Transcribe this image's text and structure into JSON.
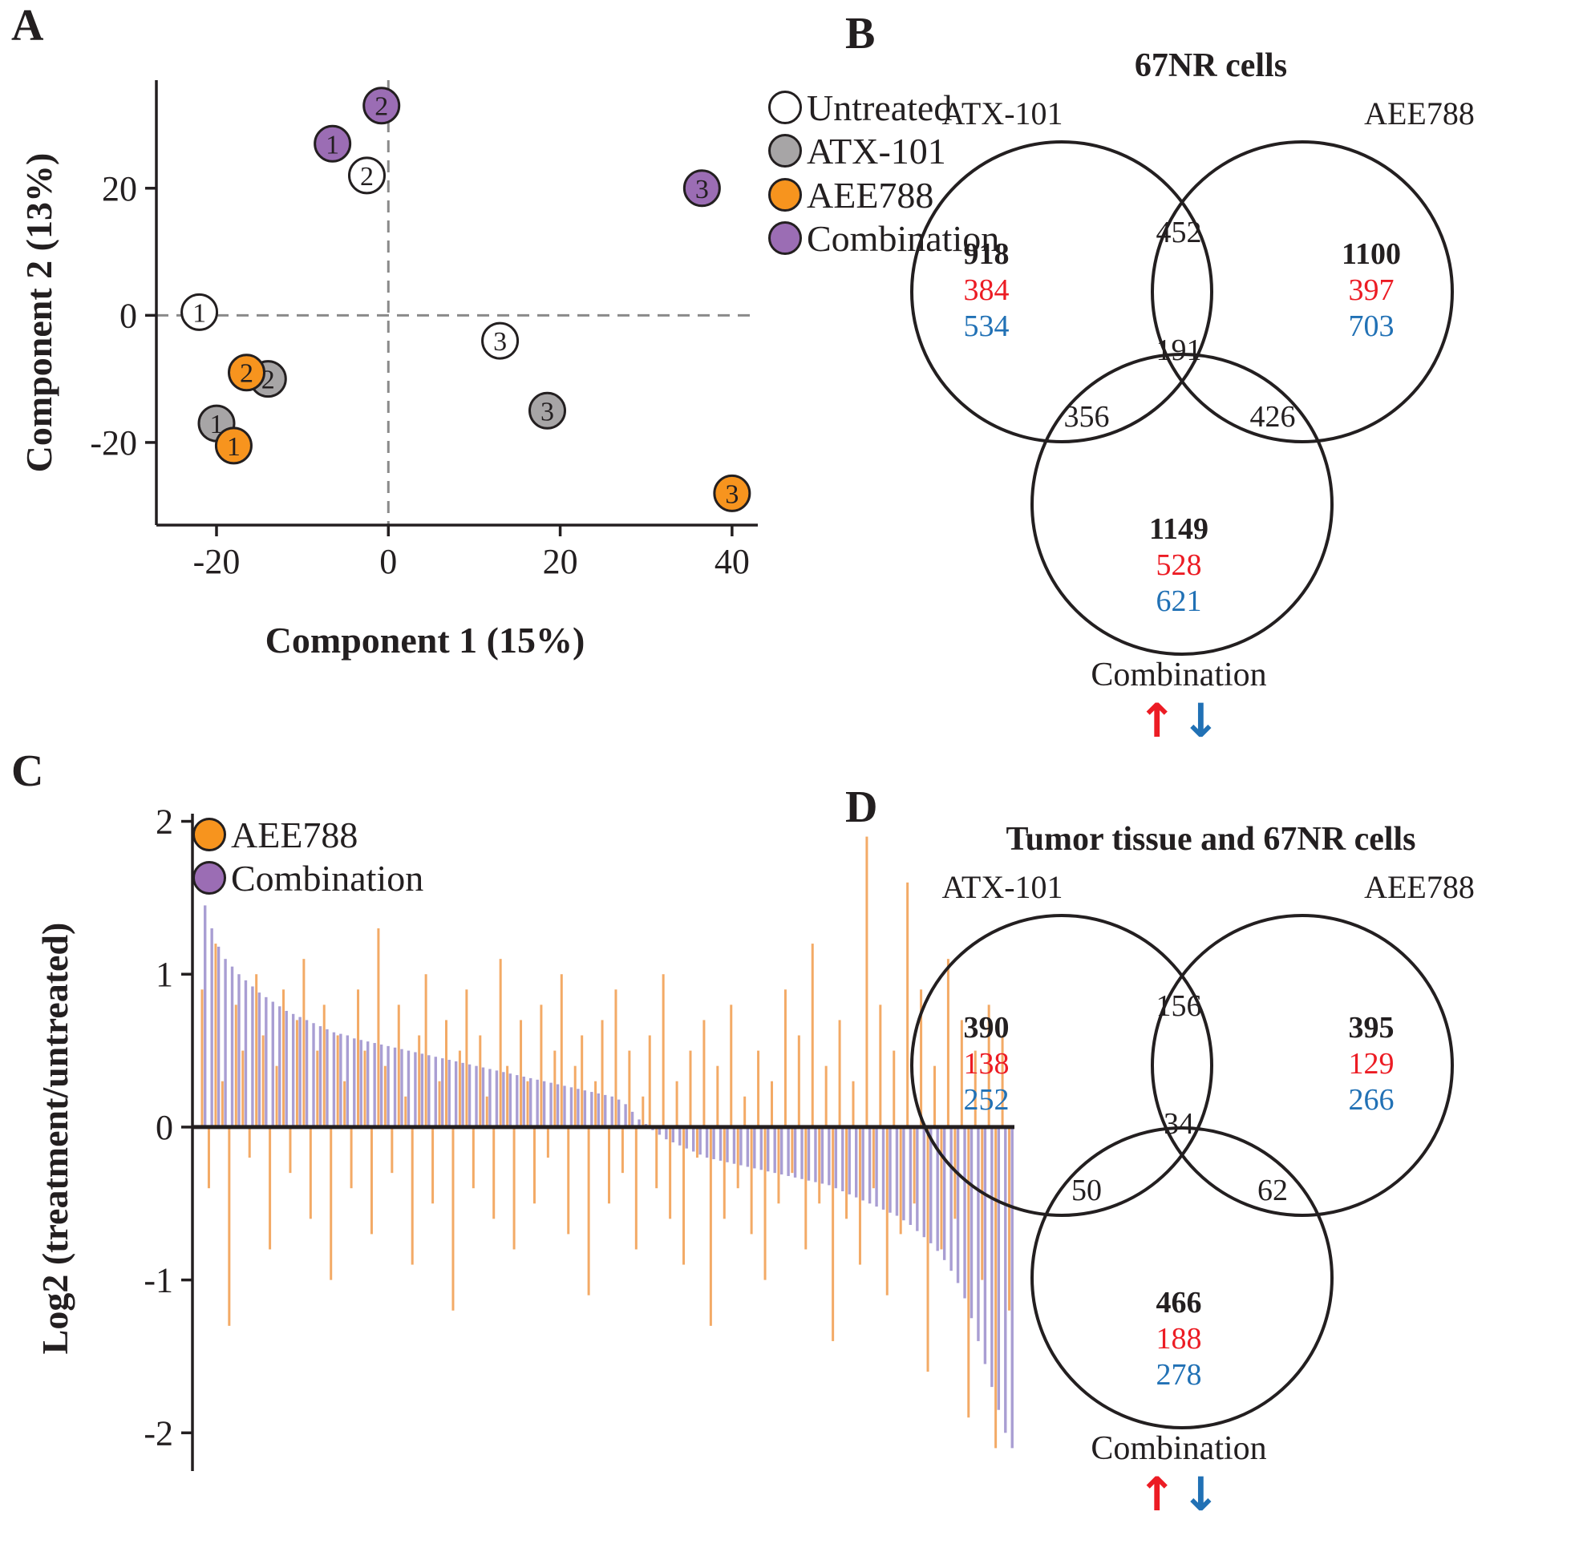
{
  "panel_labels": {
    "a": "A",
    "b": "B",
    "c": "C",
    "d": "D"
  },
  "colors": {
    "outline": "#231f20",
    "untreated": "#ffffff",
    "atx101_gray": "#a7a5a6",
    "aee788_orange": "#f7941e",
    "combination_purple": "#9b6db4",
    "up_red": "#ec1c24",
    "down_blue": "#2171b5",
    "dashed_gray": "#8a8a8a"
  },
  "chart_data": [
    {
      "id": "pca_scatter",
      "type": "scatter",
      "title": "",
      "xlabel": "Component 1 (15%)",
      "ylabel": "Component 2 (13%)",
      "xlim": [
        -27,
        43
      ],
      "ylim": [
        -33,
        37
      ],
      "xticks": [
        -20,
        0,
        20,
        40
      ],
      "yticks": [
        20,
        0,
        -20
      ],
      "grid": false,
      "zero_lines": true,
      "legend_position": "top-right-outside",
      "legend": [
        {
          "label": "Untreated",
          "color": "#ffffff"
        },
        {
          "label": "ATX-101",
          "color": "#a7a5a6"
        },
        {
          "label": "AEE788",
          "color": "#f7941e"
        },
        {
          "label": "Combination",
          "color": "#9b6db4"
        }
      ],
      "series": [
        {
          "name": "Untreated",
          "color": "#ffffff",
          "points": [
            {
              "x": -22,
              "y": 0.5,
              "label": "1"
            },
            {
              "x": -2.5,
              "y": 22,
              "label": "2"
            },
            {
              "x": 13,
              "y": -4,
              "label": "3"
            }
          ]
        },
        {
          "name": "ATX-101",
          "color": "#a7a5a6",
          "points": [
            {
              "x": -20,
              "y": -17,
              "label": "1"
            },
            {
              "x": -14,
              "y": -10,
              "label": "2"
            },
            {
              "x": 18.5,
              "y": -15,
              "label": "3"
            }
          ]
        },
        {
          "name": "AEE788",
          "color": "#f7941e",
          "points": [
            {
              "x": -18,
              "y": -20.5,
              "label": "1"
            },
            {
              "x": -16.5,
              "y": -9,
              "label": "2"
            },
            {
              "x": 40,
              "y": -28,
              "label": "3"
            }
          ]
        },
        {
          "name": "Combination",
          "color": "#9b6db4",
          "points": [
            {
              "x": -6.5,
              "y": 27,
              "label": "1"
            },
            {
              "x": -0.8,
              "y": 33,
              "label": "2"
            },
            {
              "x": 36.5,
              "y": 20,
              "label": "3"
            }
          ]
        }
      ]
    },
    {
      "id": "venn_67nr",
      "type": "venn",
      "title": "67NR cells",
      "sets": {
        "left": "ATX-101",
        "right": "AEE788",
        "bottom": "Combination"
      },
      "regions": {
        "left_only": {
          "total": "918",
          "up": "384",
          "down": "534"
        },
        "right_only": {
          "total": "1100",
          "up": "397",
          "down": "703"
        },
        "left_right": "452",
        "center": "191",
        "left_bottom": "356",
        "right_bottom": "426",
        "bottom_only": {
          "total": "1149",
          "up": "528",
          "down": "621"
        }
      },
      "arrows": {
        "up": "↑",
        "down": "↓"
      }
    },
    {
      "id": "log2_waterfall",
      "type": "bar",
      "title": "",
      "xlabel": "",
      "ylabel": "Log2 (treatment/untreated)",
      "ylim": [
        -2.25,
        2.05
      ],
      "yticks": [
        2,
        1,
        0,
        -1,
        -2
      ],
      "legend_position": "top-left-inside",
      "legend": [
        {
          "label": "AEE788",
          "color": "#f7941e"
        },
        {
          "label": "Combination",
          "color": "#9b6db4"
        }
      ],
      "series": [
        {
          "name": "AEE788",
          "color": "#f2a155",
          "values": [
            0.9,
            -0.4,
            1.2,
            0.3,
            -1.3,
            0.8,
            0.5,
            -0.2,
            1.0,
            0.6,
            -0.8,
            0.4,
            0.9,
            -0.3,
            0.7,
            1.1,
            -0.6,
            0.5,
            0.8,
            -1.0,
            0.6,
            0.3,
            -0.4,
            0.9,
            0.5,
            -0.7,
            1.3,
            0.4,
            -0.3,
            0.8,
            0.2,
            -0.9,
            0.6,
            1.0,
            -0.5,
            0.3,
            0.7,
            -1.2,
            0.5,
            0.9,
            -0.4,
            0.6,
            0.2,
            -0.6,
            1.1,
            0.4,
            -0.8,
            0.7,
            0.3,
            -0.5,
            0.8,
            -0.2,
            0.5,
            1.0,
            -0.7,
            0.4,
            0.6,
            -1.1,
            0.3,
            0.7,
            -0.5,
            0.9,
            -0.3,
            0.5,
            -0.8,
            0.2,
            0.6,
            -0.4,
            1.0,
            -0.6,
            0.3,
            -0.9,
            0.5,
            -0.2,
            0.7,
            -1.3,
            0.4,
            -0.6,
            0.8,
            -0.4,
            0.2,
            -0.7,
            0.5,
            -1.0,
            0.3,
            -0.5,
            0.9,
            -0.3,
            0.6,
            -0.8,
            1.2,
            -0.5,
            0.4,
            -1.4,
            0.7,
            -0.6,
            0.3,
            -0.9,
            1.9,
            -0.4,
            0.8,
            -1.1,
            0.5,
            -0.7,
            1.6,
            -0.5,
            0.9,
            -1.6,
            0.4,
            -0.8,
            1.1,
            -0.6,
            0.7,
            -1.9,
            0.5,
            -1.0,
            0.8,
            -2.1,
            0.6,
            -1.2
          ]
        },
        {
          "name": "Combination",
          "color": "#a094ce",
          "values": [
            1.45,
            1.3,
            1.18,
            1.1,
            1.05,
            1.0,
            0.96,
            0.92,
            0.88,
            0.85,
            0.82,
            0.79,
            0.76,
            0.74,
            0.72,
            0.7,
            0.68,
            0.66,
            0.64,
            0.62,
            0.61,
            0.6,
            0.58,
            0.57,
            0.56,
            0.55,
            0.54,
            0.53,
            0.52,
            0.51,
            0.5,
            0.49,
            0.48,
            0.47,
            0.46,
            0.45,
            0.44,
            0.43,
            0.42,
            0.41,
            0.4,
            0.39,
            0.38,
            0.37,
            0.36,
            0.35,
            0.34,
            0.33,
            0.32,
            0.31,
            0.3,
            0.29,
            0.28,
            0.27,
            0.26,
            0.25,
            0.24,
            0.23,
            0.22,
            0.21,
            0.2,
            0.18,
            0.15,
            0.1,
            0.05,
            0.02,
            -0.02,
            -0.05,
            -0.08,
            -0.1,
            -0.12,
            -0.14,
            -0.16,
            -0.18,
            -0.2,
            -0.21,
            -0.22,
            -0.23,
            -0.24,
            -0.25,
            -0.26,
            -0.27,
            -0.28,
            -0.29,
            -0.3,
            -0.31,
            -0.32,
            -0.33,
            -0.34,
            -0.35,
            -0.36,
            -0.37,
            -0.38,
            -0.4,
            -0.42,
            -0.44,
            -0.46,
            -0.48,
            -0.5,
            -0.52,
            -0.54,
            -0.56,
            -0.58,
            -0.61,
            -0.64,
            -0.68,
            -0.72,
            -0.76,
            -0.81,
            -0.87,
            -0.94,
            -1.02,
            -1.12,
            -1.25,
            -1.4,
            -1.55,
            -1.7,
            -1.85,
            -2.0,
            -2.1
          ]
        }
      ]
    },
    {
      "id": "venn_tumor",
      "type": "venn",
      "title": "Tumor tissue and 67NR cells",
      "sets": {
        "left": "ATX-101",
        "right": "AEE788",
        "bottom": "Combination"
      },
      "regions": {
        "left_only": {
          "total": "390",
          "up": "138",
          "down": "252"
        },
        "right_only": {
          "total": "395",
          "up": "129",
          "down": "266"
        },
        "left_right": "156",
        "center": "34",
        "left_bottom": "50",
        "right_bottom": "62",
        "bottom_only": {
          "total": "466",
          "up": "188",
          "down": "278"
        }
      },
      "arrows": {
        "up": "↑",
        "down": "↓"
      }
    }
  ]
}
